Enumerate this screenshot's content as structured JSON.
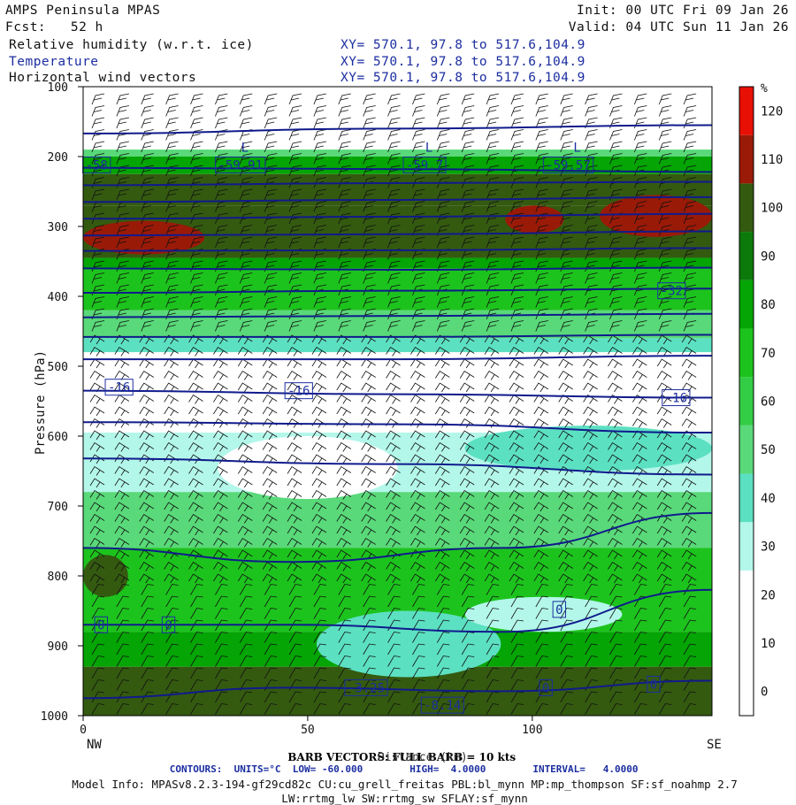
{
  "header": {
    "model": "AMPS Peninsula MPAS",
    "init": "Init: 00 UTC Fri 09 Jan 26",
    "fcst": "Fcst:   52 h",
    "valid": "Valid: 04 UTC Sun 11 Jan 26",
    "fields": [
      {
        "name": "Relative humidity (w.r.t. ice)",
        "xy": "XY= 570.1, 97.8 to 517.6,104.9"
      },
      {
        "name": "Temperature",
        "xy": "XY= 570.1, 97.8 to 517.6,104.9"
      },
      {
        "name": "Horizontal wind vectors",
        "xy": "XY= 570.1, 97.8 to 517.6,104.9"
      }
    ]
  },
  "chart_data": {
    "type": "heatmap",
    "ylabel": "Pressure (hPa)",
    "xlabel": "Distance (km)",
    "x_ticks": [
      0,
      50,
      100
    ],
    "xlim": [
      0,
      140
    ],
    "y_ticks": [
      100,
      200,
      300,
      400,
      500,
      600,
      700,
      800,
      900,
      1000
    ],
    "ylim": [
      100,
      1000
    ],
    "x_end_labels": {
      "left": "NW",
      "right": "SE"
    },
    "colorbar": {
      "unit": "%",
      "levels": [
        0,
        10,
        20,
        30,
        40,
        50,
        60,
        70,
        80,
        90,
        100,
        110,
        120
      ],
      "colors": [
        "#ffffff",
        "#ffffff",
        "#ffffff",
        "#b3f7ea",
        "#5ce0c2",
        "#59d979",
        "#33cd45",
        "#1dc31d",
        "#04a504",
        "#0b7a0b",
        "#345a10",
        "#9a1a08",
        "#e81005"
      ]
    },
    "rh_bands": [
      {
        "p_top": 100,
        "p_bot": 190,
        "level": 0
      },
      {
        "p_top": 190,
        "p_bot": 200,
        "level": 50
      },
      {
        "p_top": 200,
        "p_bot": 225,
        "level": 80
      },
      {
        "p_top": 225,
        "p_bot": 270,
        "level": 100
      },
      {
        "p_top": 270,
        "p_bot": 345,
        "level": 100
      },
      {
        "p_top": 345,
        "p_bot": 360,
        "level": 80
      },
      {
        "p_top": 360,
        "p_bot": 420,
        "level": 70
      },
      {
        "p_top": 420,
        "p_bot": 460,
        "level": 50
      },
      {
        "p_top": 460,
        "p_bot": 480,
        "level": 40
      },
      {
        "p_top": 480,
        "p_bot": 595,
        "level": 0
      },
      {
        "p_top": 595,
        "p_bot": 680,
        "level": 30
      },
      {
        "p_top": 680,
        "p_bot": 760,
        "level": 50
      },
      {
        "p_top": 760,
        "p_bot": 880,
        "level": 70
      },
      {
        "p_top": 880,
        "p_bot": 930,
        "level": 80
      },
      {
        "p_top": 930,
        "p_bot": 1000,
        "level": 100
      }
    ],
    "rh_patches": [
      {
        "x": [
          0,
          27
        ],
        "p": [
          292,
          340
        ],
        "level": 110
      },
      {
        "x": [
          94,
          107
        ],
        "p": [
          270,
          310
        ],
        "level": 110
      },
      {
        "x": [
          115,
          140
        ],
        "p": [
          255,
          315
        ],
        "level": 110
      },
      {
        "x": [
          0,
          10
        ],
        "p": [
          770,
          830
        ],
        "level": 100
      },
      {
        "x": [
          52,
          93
        ],
        "p": [
          850,
          945
        ],
        "level": 40
      },
      {
        "x": [
          85,
          120
        ],
        "p": [
          830,
          880
        ],
        "level": 30
      },
      {
        "x": [
          30,
          70
        ],
        "p": [
          600,
          690
        ],
        "level": 0
      },
      {
        "x": [
          85,
          140
        ],
        "p": [
          585,
          650
        ],
        "level": 40
      }
    ],
    "temperature_contours": {
      "units": "°C",
      "series": [
        {
          "p": [
            167,
            160,
            155
          ]
        },
        {
          "p": [
            216,
            218,
            222
          ]
        },
        {
          "p": [
            241,
            238,
            236
          ]
        },
        {
          "p": [
            265,
            262,
            258
          ]
        },
        {
          "p": [
            289,
            286,
            282
          ]
        },
        {
          "p": [
            313,
            311,
            307
          ]
        },
        {
          "p": [
            335,
            334,
            331
          ]
        },
        {
          "p": [
            360,
            362,
            359
          ]
        },
        {
          "p": [
            395,
            392,
            389
          ]
        },
        {
          "p": [
            430,
            428,
            425
          ]
        },
        {
          "p": [
            458,
            458,
            455
          ]
        },
        {
          "p": [
            490,
            490,
            485
          ]
        },
        {
          "p": [
            535,
            540,
            545
          ]
        },
        {
          "p": [
            580,
            583,
            595
          ]
        },
        {
          "p": [
            632,
            640,
            655
          ]
        },
        {
          "p": [
            760,
            780,
            760,
            710
          ]
        },
        {
          "p": [
            870,
            870,
            880,
            820
          ]
        },
        {
          "p": [
            975,
            960,
            965,
            950
          ]
        }
      ],
      "labels": [
        {
          "text": "-58",
          "x": 3,
          "p": 212
        },
        {
          "text": "-59.91",
          "x": 35,
          "p": 212
        },
        {
          "text": "-59.7",
          "x": 76,
          "p": 212
        },
        {
          "text": "-59.57",
          "x": 108,
          "p": 212
        },
        {
          "text": "-32",
          "x": 131,
          "p": 392
        },
        {
          "text": "-16",
          "x": 8,
          "p": 530
        },
        {
          "text": "-16",
          "x": 48,
          "p": 535
        },
        {
          "text": "-16",
          "x": 132,
          "p": 545
        },
        {
          "text": "0",
          "x": 4,
          "p": 870
        },
        {
          "text": "0",
          "x": 19,
          "p": 870
        },
        {
          "text": "0",
          "x": 106,
          "p": 848
        },
        {
          "text": "0",
          "x": 103,
          "p": 960
        },
        {
          "text": "0",
          "x": 127,
          "p": 955
        },
        {
          "text": "-3.25",
          "x": 63,
          "p": 960
        },
        {
          "text": "-8.14",
          "x": 80,
          "p": 985
        }
      ],
      "low_markers": [
        {
          "text": "L",
          "x": 36,
          "p": 193
        },
        {
          "text": "L",
          "x": 77,
          "p": 193
        },
        {
          "text": "L",
          "x": 110,
          "p": 193
        }
      ]
    },
    "wind_barbs": {
      "full_barb_kts": 10,
      "columns": 25
    }
  },
  "footer": {
    "barb_note": "BARB VECTORS: FULL BARB = 10 kts",
    "distance_label": "Distance (km)",
    "contours_line": "CONTOURS:  UNITS=°C  LOW= -60.000        HIGH=  4.0000        INTERVAL=   4.0000",
    "model_info_1": "Model Info: MPASv8.2.3-194-gf29cd82c CU:cu_grell_freitas PBL:bl_mynn MP:mp_thompson SF:sf_noahmp 2.7",
    "model_info_2": "LW:rrtmg_lw SW:rrtmg_sw SFLAY:sf_mynn"
  }
}
